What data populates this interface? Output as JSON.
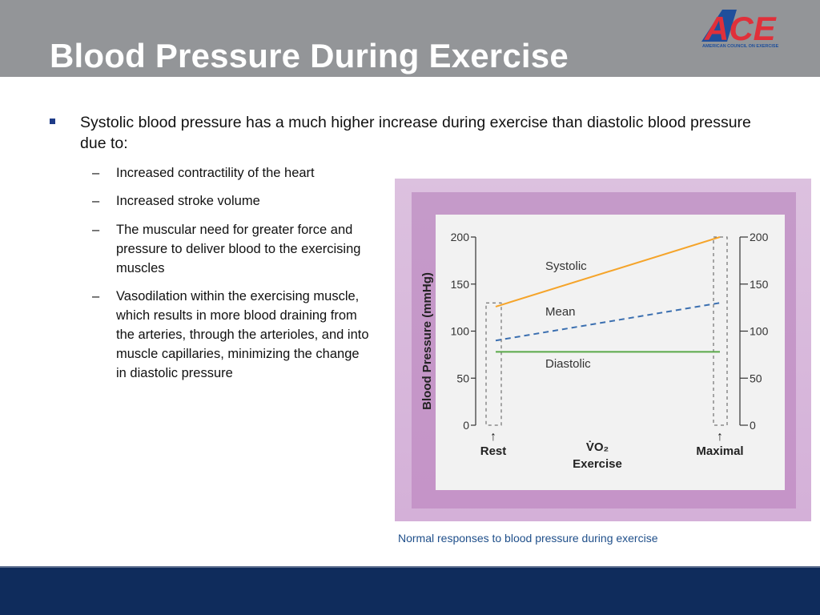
{
  "slide": {
    "title": "Blood Pressure During Exercise",
    "logo_text": "ACE",
    "logo_subtext": "AMERICAN COUNCIL ON EXERCISE",
    "main_bullet": "Systolic blood pressure has a much higher increase during exercise than diastolic blood pressure due to:",
    "sub_bullets": [
      "Increased contractility of the heart",
      "Increased stroke volume",
      "The muscular need for greater force and pressure to deliver blood to the exercising muscles",
      "Vasodilation within the exercising muscle, which results in more blood draining from the arteries, through the arterioles, and into muscle capillaries, minimizing the change in diastolic pressure"
    ],
    "caption": "Normal responses to blood pressure during exercise"
  },
  "colors": {
    "header": "#939598",
    "footer": "#0f2c5c",
    "systolic": "#f5a42a",
    "mean": "#3b6fb0",
    "diastolic": "#5aa849",
    "logo_red": "#e0303a",
    "logo_blue": "#1f4f9c"
  },
  "chart_data": {
    "type": "line",
    "ylabel": "Blood Pressure (mmHg)",
    "xlabel_symbol": "V̇O₂",
    "xlabel": "Exercise",
    "x_categories": [
      "Rest",
      "Maximal"
    ],
    "x_markers": [
      "↑",
      "↑"
    ],
    "yticks": [
      0,
      50,
      100,
      150,
      200
    ],
    "ylim": [
      0,
      200
    ],
    "grid": false,
    "series": [
      {
        "name": "Systolic",
        "values": [
          126,
          200
        ],
        "style": "solid",
        "color": "#f5a42a"
      },
      {
        "name": "Mean",
        "values": [
          90,
          130
        ],
        "style": "dashed",
        "color": "#3b6fb0"
      },
      {
        "name": "Diastolic",
        "values": [
          78,
          78
        ],
        "style": "solid",
        "color": "#5aa849"
      }
    ],
    "rest_box_top": 130,
    "max_box_top": 200
  }
}
